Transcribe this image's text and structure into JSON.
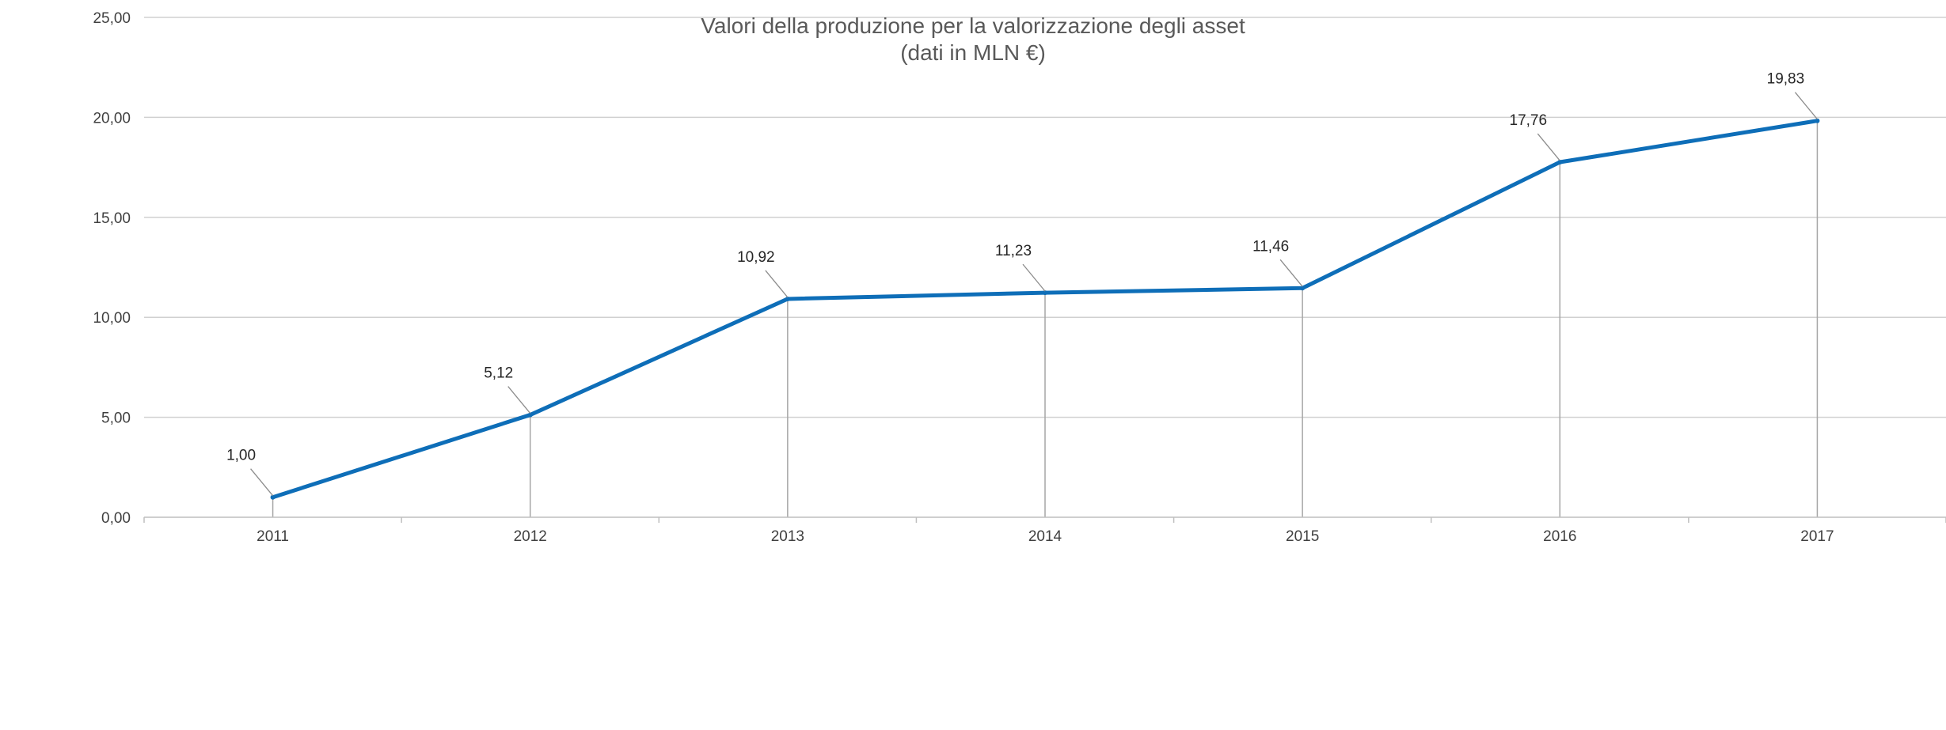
{
  "chart_data": {
    "type": "line",
    "title": "Valori della produzione per la valorizzazione degli asset",
    "subtitle": "(dati in MLN €)",
    "categories": [
      "2011",
      "2012",
      "2013",
      "2014",
      "2015",
      "2016",
      "2017"
    ],
    "series": [
      {
        "values": [
          1.0,
          5.12,
          10.92,
          11.23,
          11.46,
          17.76,
          19.83
        ],
        "labels": [
          "1,00",
          "5,12",
          "10,92",
          "11,23",
          "11,46",
          "17,76",
          "19,83"
        ],
        "color": "#0E6EB8"
      }
    ],
    "yticks": [
      "0,00",
      "5,00",
      "10,00",
      "15,00",
      "20,00",
      "25,00"
    ],
    "ylim": [
      0,
      25
    ],
    "grid": true,
    "drop_lines": true,
    "legend": "none",
    "colors": {
      "line": "#0E6EB8",
      "grid": "#D0D0D0",
      "drop": "#A6A6A6",
      "axis": "#BFBFBF"
    }
  }
}
